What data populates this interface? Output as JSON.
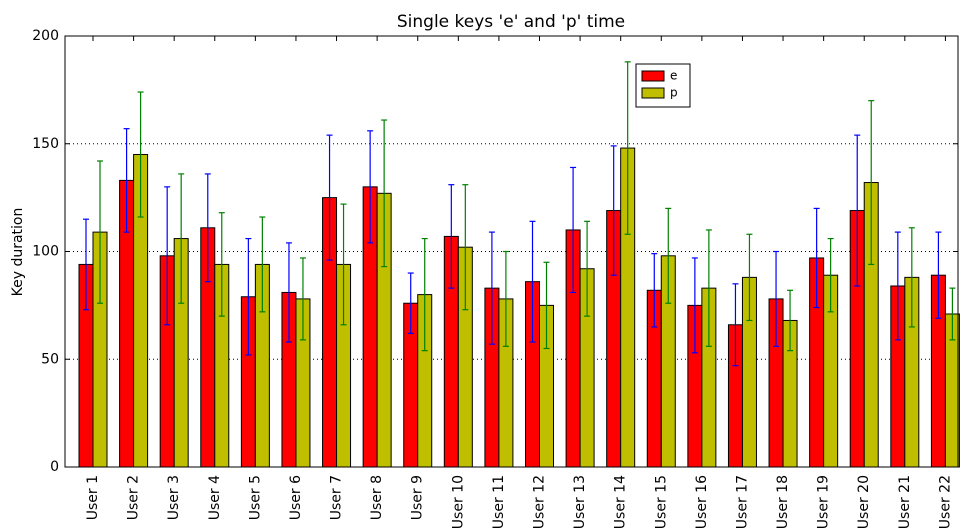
{
  "chart_data": {
    "type": "bar",
    "title": "Single keys 'e' and 'p' time",
    "y_label": "Key duration",
    "categories": [
      "User 1",
      "User 2",
      "User 3",
      "User 4",
      "User 5",
      "User 6",
      "User 7",
      "User 8",
      "User 9",
      "User 10",
      "User 11",
      "User 12",
      "User 13",
      "User 14",
      "User 15",
      "User 16",
      "User 17",
      "User 18",
      "User 19",
      "User 20",
      "User 21",
      "User 22"
    ],
    "series": [
      {
        "name": "e",
        "color": "#ff0000",
        "error_color": "#0000ff",
        "values": [
          94,
          133,
          98,
          111,
          79,
          81,
          125,
          130,
          76,
          107,
          83,
          86,
          110,
          119,
          82,
          75,
          66,
          78,
          97,
          119,
          84,
          89
        ],
        "errors": [
          21,
          24,
          32,
          25,
          27,
          23,
          29,
          26,
          14,
          24,
          26,
          28,
          29,
          30,
          17,
          22,
          19,
          22,
          23,
          35,
          25,
          20
        ]
      },
      {
        "name": "p",
        "color": "#bfbf00",
        "error_color": "#008000",
        "values": [
          109,
          145,
          106,
          94,
          94,
          78,
          94,
          127,
          80,
          102,
          78,
          75,
          92,
          148,
          98,
          83,
          88,
          68,
          89,
          132,
          88,
          71
        ],
        "errors": [
          33,
          29,
          30,
          24,
          22,
          19,
          28,
          34,
          26,
          29,
          22,
          20,
          22,
          40,
          22,
          27,
          20,
          14,
          17,
          38,
          23,
          12
        ]
      }
    ],
    "ylim": [
      0,
      200
    ],
    "yticks": [
      0,
      50,
      100,
      150,
      200
    ],
    "grid": true,
    "legend": "upper-right"
  }
}
